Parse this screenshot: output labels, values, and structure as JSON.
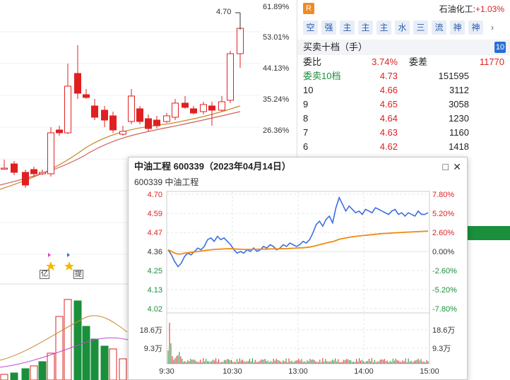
{
  "kline": {
    "high_marker": "4.70",
    "pct_axis": [
      "61.89%",
      "53.01%",
      "44.13%",
      "35.24%",
      "26.36%"
    ],
    "marker_labels": [
      "亿",
      "提"
    ]
  },
  "panel": {
    "badge": "R",
    "sector_name": "石油化工:",
    "sector_change": "+1.03%",
    "tags": [
      "空",
      "强",
      "主",
      "主",
      "主",
      "水",
      "三",
      "流",
      "神",
      "神"
    ],
    "tags_more": "›",
    "order_book": {
      "title": "买卖十档（手）",
      "count": "10",
      "ratio_label": "委比",
      "ratio_value": "3.74%",
      "diff_label": "委差",
      "diff_value": "11770",
      "sell_label": "委卖10档",
      "sell_price": "4.73",
      "sell_volume": "151595",
      "rows": [
        {
          "level": "10",
          "price": "4.66",
          "volume": "3112"
        },
        {
          "level": "9",
          "price": "4.65",
          "volume": "3058"
        },
        {
          "level": "8",
          "price": "4.64",
          "volume": "1230"
        },
        {
          "level": "7",
          "price": "4.63",
          "volume": "1160"
        },
        {
          "level": "6",
          "price": "4.62",
          "volume": "1418"
        }
      ]
    }
  },
  "popup": {
    "title": "中油工程 600339（2023年04月14日）",
    "subtitle": "600339 中油工程",
    "controls": {
      "minimize": "□",
      "close": "✕"
    }
  },
  "chart_data": {
    "type": "line",
    "title": "中油工程 600339（2023年04月14日）",
    "price_axis": [
      "4.70",
      "4.59",
      "4.47",
      "4.36",
      "4.25",
      "4.13",
      "4.02"
    ],
    "pct_axis": [
      "7.80%",
      "5.20%",
      "2.60%",
      "0.00%",
      "-2.60%",
      "-5.20%",
      "-7.80%"
    ],
    "volume_axis_left": [
      "18.6万",
      "9.3万"
    ],
    "volume_axis_right": [
      "18.6万",
      "9.3万"
    ],
    "x_ticks": [
      "9:30",
      "10:30",
      "13:00",
      "14:00",
      "15:00"
    ],
    "ylim": [
      4.02,
      4.7
    ],
    "prev_close": 4.36,
    "series": [
      {
        "name": "price",
        "color": "#3a6fe0",
        "values": [
          4.37,
          4.34,
          4.3,
          4.27,
          4.29,
          4.33,
          4.35,
          4.34,
          4.36,
          4.38,
          4.37,
          4.39,
          4.43,
          4.44,
          4.42,
          4.45,
          4.43,
          4.44,
          4.42,
          4.4,
          4.37,
          4.35,
          4.36,
          4.35,
          4.37,
          4.36,
          4.38,
          4.36,
          4.37,
          4.39,
          4.38,
          4.4,
          4.39,
          4.37,
          4.38,
          4.4,
          4.39,
          4.41,
          4.4,
          4.39,
          4.4,
          4.42,
          4.41,
          4.43,
          4.47,
          4.52,
          4.54,
          4.51,
          4.55,
          4.57,
          4.53,
          4.62,
          4.68,
          4.64,
          4.6,
          4.63,
          4.61,
          4.59,
          4.6,
          4.58,
          4.61,
          4.6,
          4.59,
          4.62,
          4.61,
          4.6,
          4.59,
          4.58,
          4.6,
          4.61,
          4.58,
          4.59,
          4.57,
          4.59,
          4.58,
          4.57,
          4.6,
          4.58,
          4.58,
          4.59
        ]
      },
      {
        "name": "avg",
        "color": "#f08a10",
        "values": [
          4.37,
          4.36,
          4.35,
          4.345,
          4.345,
          4.35,
          4.352,
          4.355,
          4.357,
          4.36,
          4.362,
          4.365,
          4.368,
          4.37,
          4.372,
          4.373,
          4.374,
          4.375,
          4.376,
          4.376,
          4.375,
          4.374,
          4.373,
          4.372,
          4.372,
          4.372,
          4.373,
          4.373,
          4.373,
          4.374,
          4.374,
          4.375,
          4.375,
          4.375,
          4.376,
          4.376,
          4.377,
          4.378,
          4.379,
          4.38,
          4.381,
          4.382,
          4.384,
          4.386,
          4.39,
          4.395,
          4.4,
          4.405,
          4.41,
          4.415,
          4.418,
          4.425,
          4.432,
          4.437,
          4.44,
          4.444,
          4.447,
          4.45,
          4.452,
          4.454,
          4.456,
          4.458,
          4.46,
          4.462,
          4.464,
          4.466,
          4.467,
          4.468,
          4.47,
          4.471,
          4.472,
          4.473,
          4.474,
          4.475,
          4.476,
          4.477,
          4.478,
          4.479,
          4.48,
          4.481
        ]
      }
    ],
    "colors": {
      "up": "#e02020",
      "down": "#1a8f3c",
      "price_line": "#3a6fe0",
      "avg_line": "#f08a10"
    }
  }
}
